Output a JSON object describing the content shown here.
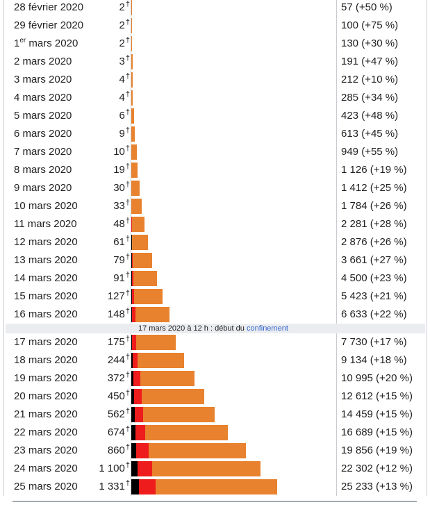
{
  "chart_data": {
    "type": "bar",
    "orientation": "horizontal",
    "stacked": true,
    "colors": {
      "deaths": "#000000",
      "middle": "#ee1c1c",
      "cases": "#e8822e"
    },
    "annotation": {
      "text": "17 mars 2020 à 12 h : début du ",
      "link": "confinement",
      "after_row": "16 mars 2020"
    },
    "death_marker": "†",
    "rows": [
      {
        "date": "28 février 2020",
        "deaths": "2",
        "cases_label": "57 (+50 %)",
        "cases": 57,
        "middle": 0
      },
      {
        "date": "29 février 2020",
        "deaths": "2",
        "cases_label": "100 (+75 %)",
        "cases": 100,
        "middle": 0
      },
      {
        "date": "1",
        "date_sup": "er",
        "date_rest": " mars 2020",
        "deaths": "2",
        "cases_label": "130 (+30 %)",
        "cases": 130,
        "middle": 0
      },
      {
        "date": "2 mars 2020",
        "deaths": "3",
        "cases_label": "191 (+47 %)",
        "cases": 191,
        "middle": 0
      },
      {
        "date": "3 mars 2020",
        "deaths": "4",
        "cases_label": "212 (+10 %)",
        "cases": 212,
        "middle": 0
      },
      {
        "date": "4 mars 2020",
        "deaths": "4",
        "cases_label": "285 (+34 %)",
        "cases": 285,
        "middle": 0
      },
      {
        "date": "5 mars 2020",
        "deaths": "6",
        "cases_label": "423 (+48 %)",
        "cases": 423,
        "middle": 0
      },
      {
        "date": "6 mars 2020",
        "deaths": "9",
        "cases_label": "613 (+45 %)",
        "cases": 613,
        "middle": 0
      },
      {
        "date": "7 mars 2020",
        "deaths": "10",
        "cases_label": "949 (+55 %)",
        "cases": 949,
        "middle": 0
      },
      {
        "date": "8 mars 2020",
        "deaths": "19",
        "cases_label": "1 126 (+19 %)",
        "cases": 1126,
        "middle": 0
      },
      {
        "date": "9 mars 2020",
        "deaths": "30",
        "cases_label": "1 412 (+25 %)",
        "cases": 1412,
        "middle": 0
      },
      {
        "date": "10 mars 2020",
        "deaths": "33",
        "cases_label": "1 784 (+26 %)",
        "cases": 1784,
        "middle": 0
      },
      {
        "date": "11 mars 2020",
        "deaths": "48",
        "cases_label": "2 281 (+28 %)",
        "cases": 2281,
        "middle": 60
      },
      {
        "date": "12 mars 2020",
        "deaths": "61",
        "cases_label": "2 876 (+26 %)",
        "cases": 2876,
        "middle": 120
      },
      {
        "date": "13 mars 2020",
        "deaths": "79",
        "cases_label": "3 661 (+27 %)",
        "cases": 3661,
        "middle": 180
      },
      {
        "date": "14 mars 2020",
        "deaths": "91",
        "cases_label": "4 500 (+23 %)",
        "cases": 4500,
        "middle": 250
      },
      {
        "date": "15 mars 2020",
        "deaths": "127",
        "cases_label": "5 423 (+21 %)",
        "cases": 5423,
        "middle": 350
      },
      {
        "date": "16 mars 2020",
        "deaths": "148",
        "cases_label": "6 633 (+22 %)",
        "cases": 6633,
        "middle": 550
      },
      {
        "date": "17 mars 2020",
        "deaths": "175",
        "cases_label": "7 730 (+17 %)",
        "cases": 7730,
        "middle": 650
      },
      {
        "date": "18 mars 2020",
        "deaths": "244",
        "cases_label": "9 134 (+18 %)",
        "cases": 9134,
        "middle": 850
      },
      {
        "date": "19 mars 2020",
        "deaths": "372",
        "cases_label": "10 995 (+20 %)",
        "cases": 10995,
        "middle": 1150
      },
      {
        "date": "20 mars 2020",
        "deaths": "450",
        "cases_label": "12 612 (+15 %)",
        "cases": 12612,
        "middle": 1300
      },
      {
        "date": "21 mars 2020",
        "deaths": "562",
        "cases_label": "14 459 (+15 %)",
        "cases": 14459,
        "middle": 1450
      },
      {
        "date": "22 mars 2020",
        "deaths": "674",
        "cases_label": "16 689 (+15 %)",
        "cases": 16689,
        "middle": 1700
      },
      {
        "date": "23 mars 2020",
        "deaths": "860",
        "cases_label": "19 856 (+19 %)",
        "cases": 19856,
        "middle": 2150
      },
      {
        "date": "24 mars 2020",
        "deaths": "1 100",
        "cases_label": "22 302 (+12 %)",
        "cases": 22302,
        "middle": 2500
      },
      {
        "date": "25 mars 2020",
        "deaths": "1 331",
        "cases_label": "25 233 (+13 %)",
        "cases": 25233,
        "middle": 2900
      }
    ]
  }
}
